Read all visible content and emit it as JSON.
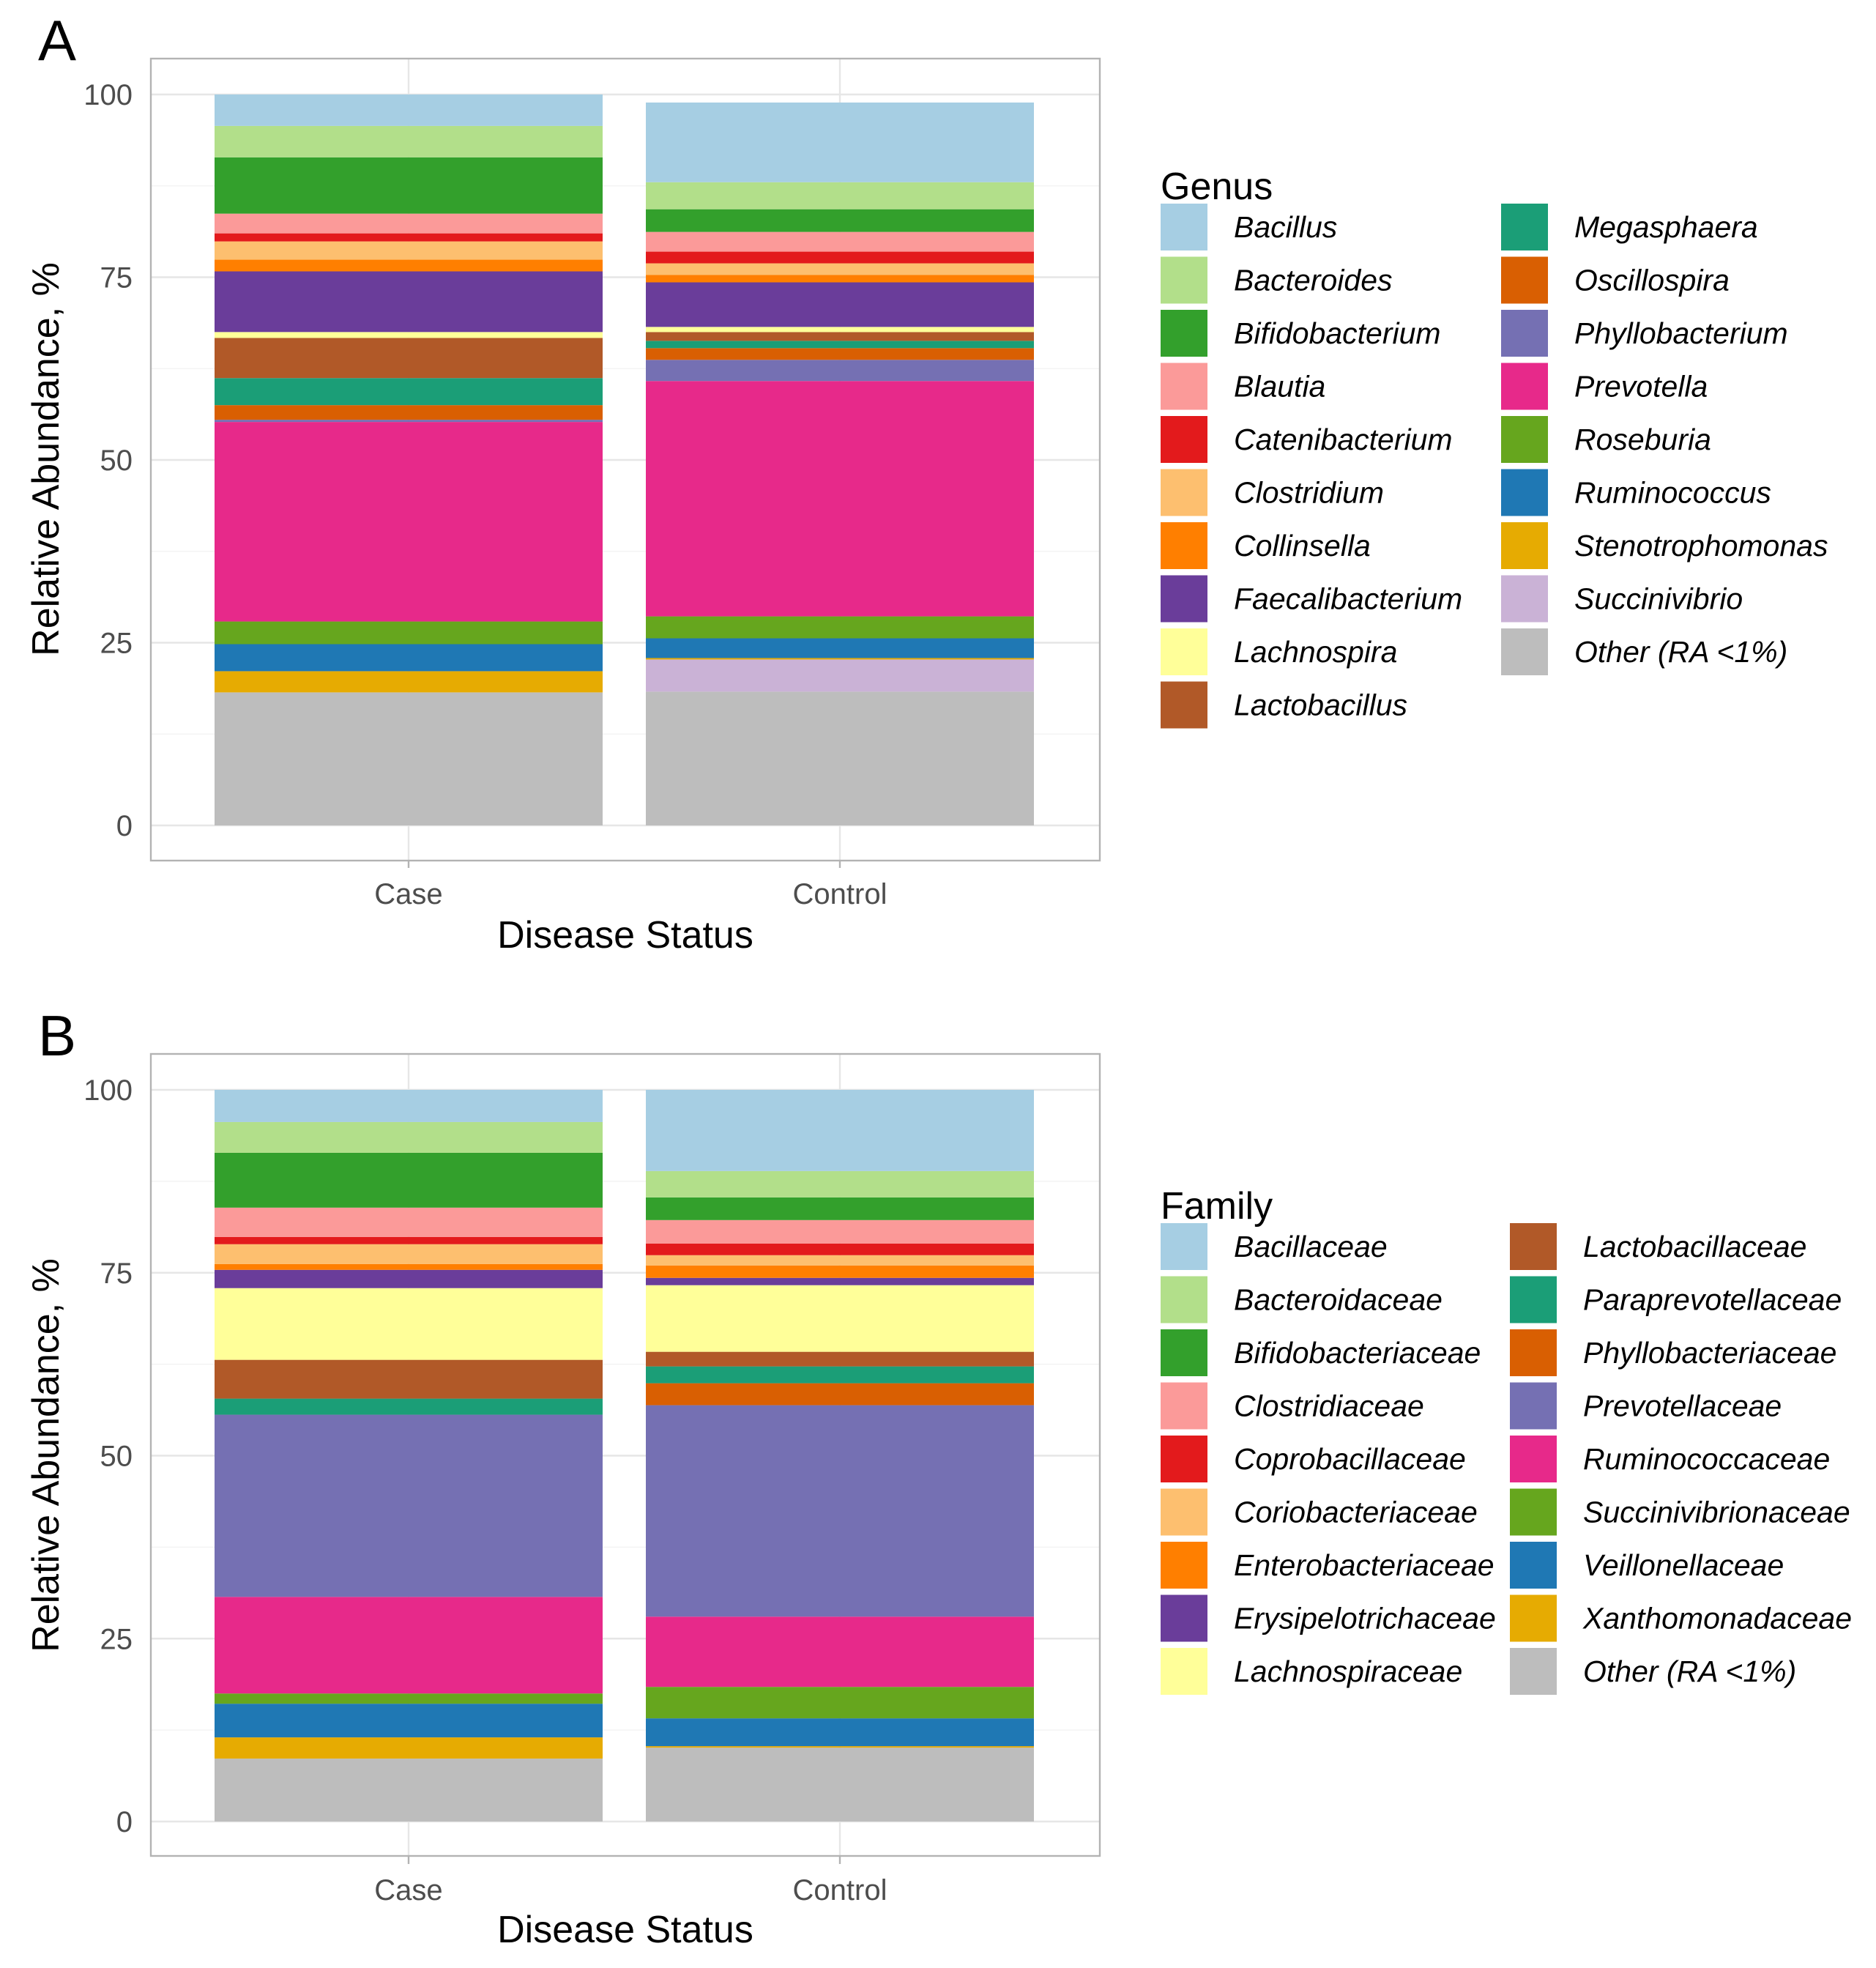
{
  "colors": {
    "bacillus": "#a6cee3",
    "bacteroides": "#b2df8a",
    "bifidobacterium": "#33a02c",
    "blautia": "#fb9a99",
    "catenibacterium": "#e31a1c",
    "clostridium": "#fdbf6f",
    "collinsella": "#ff7f00",
    "faecalibacterium": "#6a3d9a",
    "lachnospira": "#ffff99",
    "lactobacillus": "#b15928",
    "megasphaera": "#1b9e77",
    "oscillospira": "#d95f02",
    "phyllobacterium": "#7570b3",
    "prevotella": "#e7298a",
    "roseburia": "#66a61e",
    "ruminococcus": "#1f78b4",
    "stenotrophomonas": "#e6ab02",
    "succinivibrio": "#cab2d6",
    "other": "#bdbdbd"
  },
  "chart_data": [
    {
      "panel": "A",
      "type": "bar",
      "stacked": true,
      "categories": [
        "Case",
        "Control"
      ],
      "xlabel": "Disease Status",
      "ylabel": "Relative Abundance, %",
      "ylim": [
        0,
        100
      ],
      "yticks": [
        "0",
        "25",
        "50",
        "75",
        "100"
      ],
      "grid": true,
      "legend_title": "Genus",
      "legend_position": "right",
      "series": [
        {
          "name": "Bacillus",
          "color": "#a6cee3",
          "values": [
            4.3,
            10.9
          ]
        },
        {
          "name": "Bacteroides",
          "color": "#b2df8a",
          "values": [
            4.3,
            3.7
          ]
        },
        {
          "name": "Bifidobacterium",
          "color": "#33a02c",
          "values": [
            7.7,
            3.1
          ]
        },
        {
          "name": "Blautia",
          "color": "#fb9a99",
          "values": [
            2.7,
            2.7
          ]
        },
        {
          "name": "Catenibacterium",
          "color": "#e31a1c",
          "values": [
            1.1,
            1.6
          ]
        },
        {
          "name": "Clostridium",
          "color": "#fdbf6f",
          "values": [
            2.5,
            1.6
          ]
        },
        {
          "name": "Collinsella",
          "color": "#ff7f00",
          "values": [
            1.6,
            1.0
          ]
        },
        {
          "name": "Faecalibacterium",
          "color": "#6a3d9a",
          "values": [
            8.3,
            6.1
          ]
        },
        {
          "name": "Lachnospira",
          "color": "#ffff99",
          "values": [
            0.8,
            0.7
          ]
        },
        {
          "name": "Lactobacillus",
          "color": "#b15928",
          "values": [
            5.5,
            1.2
          ]
        },
        {
          "name": "Megasphaera",
          "color": "#1b9e77",
          "values": [
            3.7,
            1.0
          ]
        },
        {
          "name": "Oscillospira",
          "color": "#d95f02",
          "values": [
            2.0,
            1.6
          ]
        },
        {
          "name": "Phyllobacterium",
          "color": "#7570b3",
          "values": [
            0.3,
            2.9
          ]
        },
        {
          "name": "Prevotella",
          "color": "#e7298a",
          "values": [
            27.3,
            32.2
          ]
        },
        {
          "name": "Roseburia",
          "color": "#66a61e",
          "values": [
            3.1,
            3.0
          ]
        },
        {
          "name": "Ruminococcus",
          "color": "#1f78b4",
          "values": [
            3.7,
            2.7
          ]
        },
        {
          "name": "Stenotrophomonas",
          "color": "#e6ab02",
          "values": [
            2.9,
            0.2
          ]
        },
        {
          "name": "Succinivibrio",
          "color": "#cab2d6",
          "values": [
            0.0,
            4.4
          ]
        },
        {
          "name": "Other (RA <1%)",
          "color": "#bdbdbd",
          "values": [
            18.2,
            18.3
          ]
        }
      ]
    },
    {
      "panel": "B",
      "type": "bar",
      "stacked": true,
      "categories": [
        "Case",
        "Control"
      ],
      "xlabel": "Disease Status",
      "ylabel": "Relative Abundance, %",
      "ylim": [
        0,
        100
      ],
      "yticks": [
        "0",
        "25",
        "50",
        "75",
        "100"
      ],
      "grid": true,
      "legend_title": "Family",
      "legend_position": "right",
      "series": [
        {
          "name": "Bacillaceae",
          "color": "#a6cee3",
          "values": [
            4.4,
            11.1
          ]
        },
        {
          "name": "Bacteroidaceae",
          "color": "#b2df8a",
          "values": [
            4.2,
            3.6
          ]
        },
        {
          "name": "Bifidobacteriaceae",
          "color": "#33a02c",
          "values": [
            7.5,
            3.1
          ]
        },
        {
          "name": "Clostridiaceae",
          "color": "#fb9a99",
          "values": [
            4.0,
            3.2
          ]
        },
        {
          "name": "Coprobacillaceae",
          "color": "#e31a1c",
          "values": [
            1.0,
            1.6
          ]
        },
        {
          "name": "Coriobacteriaceae",
          "color": "#fdbf6f",
          "values": [
            2.7,
            1.4
          ]
        },
        {
          "name": "Enterobacteriaceae",
          "color": "#ff7f00",
          "values": [
            0.8,
            1.7
          ]
        },
        {
          "name": "Erysipelotrichaceae",
          "color": "#6a3d9a",
          "values": [
            2.5,
            1.0
          ]
        },
        {
          "name": "Lachnospiraceae",
          "color": "#ffff99",
          "values": [
            9.8,
            9.1
          ]
        },
        {
          "name": "Lactobacillaceae",
          "color": "#b15928",
          "values": [
            5.3,
            2.0
          ]
        },
        {
          "name": "Paraprevotellaceae",
          "color": "#1b9e77",
          "values": [
            2.2,
            2.3
          ]
        },
        {
          "name": "Phyllobacteriaceae",
          "color": "#d95f02",
          "values": [
            0.0,
            3.0
          ]
        },
        {
          "name": "Prevotellaceae",
          "color": "#7570b3",
          "values": [
            24.9,
            28.9
          ]
        },
        {
          "name": "Ruminococcaceae",
          "color": "#e7298a",
          "values": [
            13.2,
            9.6
          ]
        },
        {
          "name": "Succinivibrionaceae",
          "color": "#66a61e",
          "values": [
            1.4,
            4.3
          ]
        },
        {
          "name": "Veillonellaceae",
          "color": "#1f78b4",
          "values": [
            4.6,
            3.8
          ]
        },
        {
          "name": "Xanthomonadaceae",
          "color": "#e6ab02",
          "values": [
            2.9,
            0.2
          ]
        },
        {
          "name": "Other (RA <1%)",
          "color": "#bdbdbd",
          "values": [
            8.6,
            10.1
          ]
        }
      ]
    }
  ]
}
